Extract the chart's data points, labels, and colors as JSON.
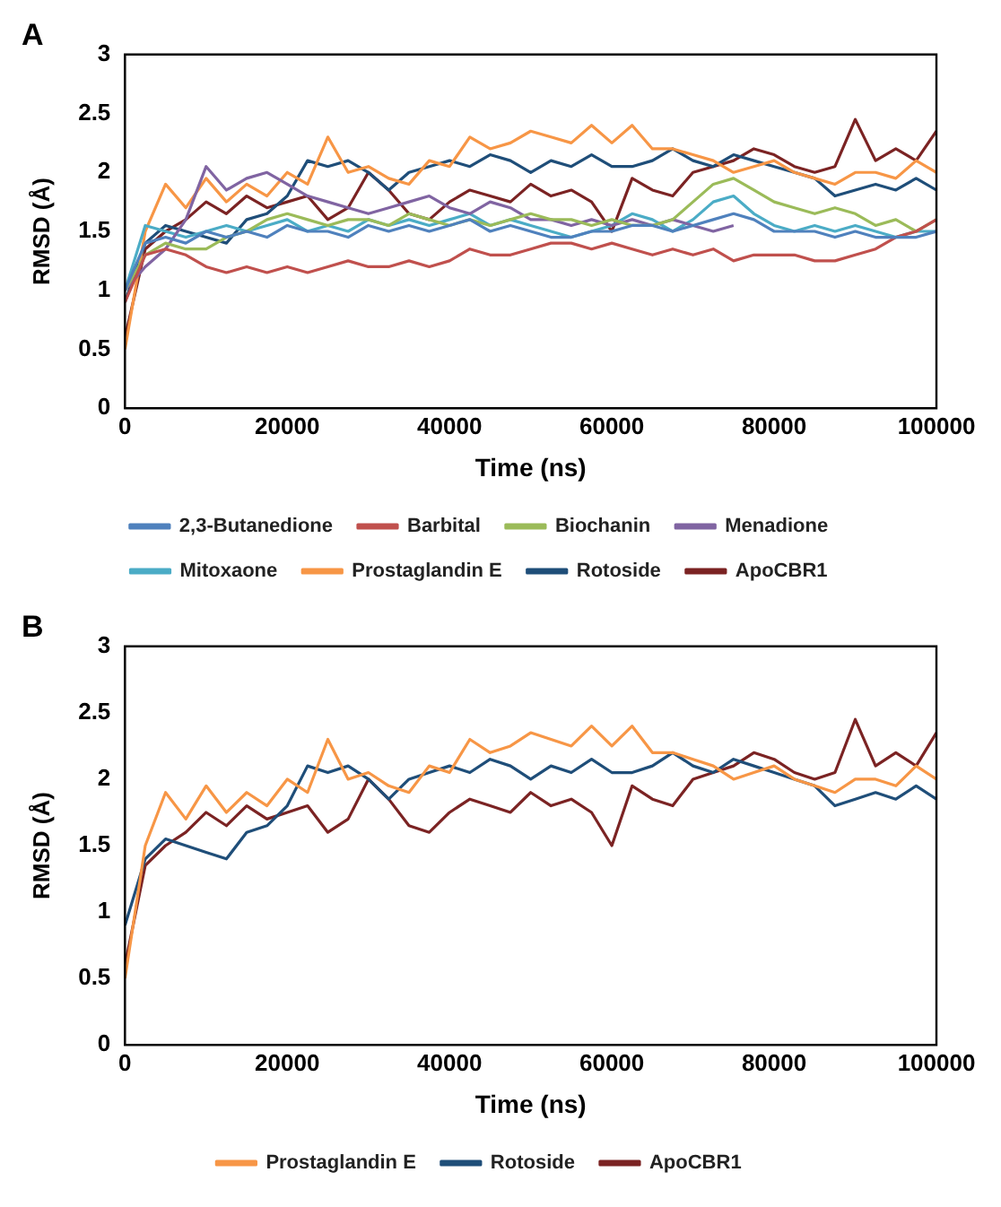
{
  "chart_data": [
    {
      "type": "line",
      "title": "A",
      "xlabel": "Time (ns)",
      "ylabel": "RMSD (Å)",
      "x": [
        0,
        2500,
        5000,
        7500,
        10000,
        12500,
        15000,
        17500,
        20000,
        22500,
        25000,
        27500,
        30000,
        32500,
        35000,
        37500,
        40000,
        42500,
        45000,
        47500,
        50000,
        52500,
        55000,
        57500,
        60000,
        62500,
        65000,
        67500,
        70000,
        72500,
        75000,
        77500,
        80000,
        82500,
        85000,
        87500,
        90000,
        92500,
        95000,
        97500,
        100000
      ],
      "series": [
        {
          "name": "2,3-Butanedione",
          "color": "#4f81bd",
          "values": [
            1.0,
            1.4,
            1.45,
            1.4,
            1.5,
            1.45,
            1.5,
            1.45,
            1.55,
            1.5,
            1.5,
            1.45,
            1.55,
            1.5,
            1.55,
            1.5,
            1.55,
            1.6,
            1.5,
            1.55,
            1.5,
            1.45,
            1.45,
            1.5,
            1.5,
            1.55,
            1.55,
            1.5,
            1.55,
            1.6,
            1.65,
            1.6,
            1.5,
            1.5,
            1.5,
            1.45,
            1.5,
            1.45,
            1.45,
            1.45,
            1.5
          ]
        },
        {
          "name": "Barbital",
          "color": "#c0504d",
          "values": [
            0.9,
            1.3,
            1.35,
            1.3,
            1.2,
            1.15,
            1.2,
            1.15,
            1.2,
            1.15,
            1.2,
            1.25,
            1.2,
            1.2,
            1.25,
            1.2,
            1.25,
            1.35,
            1.3,
            1.3,
            1.35,
            1.4,
            1.4,
            1.35,
            1.4,
            1.35,
            1.3,
            1.35,
            1.3,
            1.35,
            1.25,
            1.3,
            1.3,
            1.3,
            1.25,
            1.25,
            1.3,
            1.35,
            1.45,
            1.5,
            1.6
          ]
        },
        {
          "name": "Biochanin",
          "color": "#9bbb59",
          "values": [
            1.0,
            1.3,
            1.4,
            1.35,
            1.35,
            1.45,
            1.5,
            1.6,
            1.65,
            1.6,
            1.55,
            1.6,
            1.6,
            1.55,
            1.65,
            1.6,
            1.55,
            1.6,
            1.55,
            1.6,
            1.65,
            1.6,
            1.6,
            1.55,
            1.6,
            1.55,
            1.55,
            1.6,
            1.75,
            1.9,
            1.95,
            1.85,
            1.75,
            1.7,
            1.65,
            1.7,
            1.65,
            1.55,
            1.6,
            1.5,
            1.6
          ]
        },
        {
          "name": "Menadione",
          "color": "#8064a2",
          "values": [
            1.0,
            1.2,
            1.35,
            1.6,
            2.05,
            1.85,
            1.95,
            2.0,
            1.9,
            1.8,
            1.75,
            1.7,
            1.65,
            1.7,
            1.75,
            1.8,
            1.7,
            1.65,
            1.75,
            1.7,
            1.6,
            1.6,
            1.55,
            1.6,
            1.55,
            1.6,
            1.55,
            1.6,
            1.55,
            1.5,
            1.55,
            null,
            null,
            null,
            null,
            null,
            null,
            null,
            null,
            null,
            null
          ]
        },
        {
          "name": "Mitoxaone",
          "color": "#4bacc6",
          "values": [
            1.0,
            1.55,
            1.5,
            1.45,
            1.5,
            1.55,
            1.5,
            1.55,
            1.6,
            1.5,
            1.55,
            1.5,
            1.6,
            1.55,
            1.6,
            1.55,
            1.6,
            1.65,
            1.55,
            1.6,
            1.55,
            1.5,
            1.45,
            1.5,
            1.55,
            1.65,
            1.6,
            1.5,
            1.6,
            1.75,
            1.8,
            1.65,
            1.55,
            1.5,
            1.55,
            1.5,
            1.55,
            1.5,
            1.45,
            1.5,
            1.5
          ]
        },
        {
          "name": "Prostaglandin E",
          "color": "#f79646",
          "values": [
            0.5,
            1.5,
            1.9,
            1.7,
            1.95,
            1.75,
            1.9,
            1.8,
            2.0,
            1.9,
            2.3,
            2.0,
            2.05,
            1.95,
            1.9,
            2.1,
            2.05,
            2.3,
            2.2,
            2.25,
            2.35,
            2.3,
            2.25,
            2.4,
            2.25,
            2.4,
            2.2,
            2.2,
            2.15,
            2.1,
            2.0,
            2.05,
            2.1,
            2.0,
            1.95,
            1.9,
            2.0,
            2.0,
            1.95,
            2.1,
            2.0
          ]
        },
        {
          "name": "Rotoside",
          "color": "#1f4e79",
          "values": [
            0.9,
            1.4,
            1.55,
            1.5,
            1.45,
            1.4,
            1.6,
            1.65,
            1.8,
            2.1,
            2.05,
            2.1,
            2.0,
            1.85,
            2.0,
            2.05,
            2.1,
            2.05,
            2.15,
            2.1,
            2.0,
            2.1,
            2.05,
            2.15,
            2.05,
            2.05,
            2.1,
            2.2,
            2.1,
            2.05,
            2.15,
            2.1,
            2.05,
            2.0,
            1.95,
            1.8,
            1.85,
            1.9,
            1.85,
            1.95,
            1.85
          ]
        },
        {
          "name": "ApoCBR1",
          "color": "#7b2323",
          "values": [
            0.6,
            1.35,
            1.5,
            1.6,
            1.75,
            1.65,
            1.8,
            1.7,
            1.75,
            1.8,
            1.6,
            1.7,
            2.0,
            1.85,
            1.65,
            1.6,
            1.75,
            1.85,
            1.8,
            1.75,
            1.9,
            1.8,
            1.85,
            1.75,
            1.5,
            1.95,
            1.85,
            1.8,
            2.0,
            2.05,
            2.1,
            2.2,
            2.15,
            2.05,
            2.0,
            2.05,
            2.45,
            2.1,
            2.2,
            2.1,
            2.35
          ]
        }
      ],
      "xlim": [
        0,
        100000
      ],
      "ylim": [
        0,
        3
      ],
      "xticks": [
        0,
        20000,
        40000,
        60000,
        80000,
        100000
      ],
      "yticks": [
        0,
        0.5,
        1,
        1.5,
        2,
        2.5,
        3
      ],
      "legend": "bottom",
      "grid": false
    },
    {
      "type": "line",
      "title": "B",
      "xlabel": "Time (ns)",
      "ylabel": "RMSD (Å)",
      "x": [
        0,
        2500,
        5000,
        7500,
        10000,
        12500,
        15000,
        17500,
        20000,
        22500,
        25000,
        27500,
        30000,
        32500,
        35000,
        37500,
        40000,
        42500,
        45000,
        47500,
        50000,
        52500,
        55000,
        57500,
        60000,
        62500,
        65000,
        67500,
        70000,
        72500,
        75000,
        77500,
        80000,
        82500,
        85000,
        87500,
        90000,
        92500,
        95000,
        97500,
        100000
      ],
      "series": [
        {
          "name": "Prostaglandin E",
          "color": "#f79646",
          "values": [
            0.5,
            1.5,
            1.9,
            1.7,
            1.95,
            1.75,
            1.9,
            1.8,
            2.0,
            1.9,
            2.3,
            2.0,
            2.05,
            1.95,
            1.9,
            2.1,
            2.05,
            2.3,
            2.2,
            2.25,
            2.35,
            2.3,
            2.25,
            2.4,
            2.25,
            2.4,
            2.2,
            2.2,
            2.15,
            2.1,
            2.0,
            2.05,
            2.1,
            2.0,
            1.95,
            1.9,
            2.0,
            2.0,
            1.95,
            2.1,
            2.0
          ]
        },
        {
          "name": "Rotoside",
          "color": "#1f4e79",
          "values": [
            0.9,
            1.4,
            1.55,
            1.5,
            1.45,
            1.4,
            1.6,
            1.65,
            1.8,
            2.1,
            2.05,
            2.1,
            2.0,
            1.85,
            2.0,
            2.05,
            2.1,
            2.05,
            2.15,
            2.1,
            2.0,
            2.1,
            2.05,
            2.15,
            2.05,
            2.05,
            2.1,
            2.2,
            2.1,
            2.05,
            2.15,
            2.1,
            2.05,
            2.0,
            1.95,
            1.8,
            1.85,
            1.9,
            1.85,
            1.95,
            1.85
          ]
        },
        {
          "name": "ApoCBR1",
          "color": "#7b2323",
          "values": [
            0.6,
            1.35,
            1.5,
            1.6,
            1.75,
            1.65,
            1.8,
            1.7,
            1.75,
            1.8,
            1.6,
            1.7,
            2.0,
            1.85,
            1.65,
            1.6,
            1.75,
            1.85,
            1.8,
            1.75,
            1.9,
            1.8,
            1.85,
            1.75,
            1.5,
            1.95,
            1.85,
            1.8,
            2.0,
            2.05,
            2.1,
            2.2,
            2.15,
            2.05,
            2.0,
            2.05,
            2.45,
            2.1,
            2.2,
            2.1,
            2.35
          ]
        }
      ],
      "xlim": [
        0,
        100000
      ],
      "ylim": [
        0,
        3
      ],
      "xticks": [
        0,
        20000,
        40000,
        60000,
        80000,
        100000
      ],
      "yticks": [
        0,
        0.5,
        1,
        1.5,
        2,
        2.5,
        3
      ],
      "legend": "bottom",
      "grid": false
    }
  ]
}
